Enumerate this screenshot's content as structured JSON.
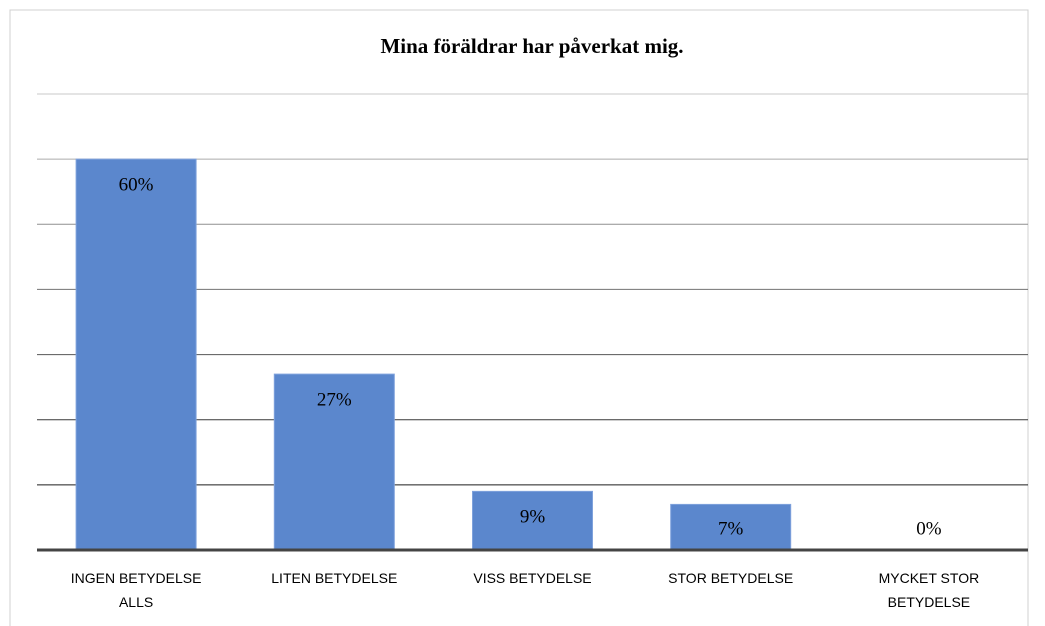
{
  "chart_data": {
    "type": "bar",
    "title": "Mina föräldrar har påverkat mig.",
    "categories": [
      "INGEN BETYDELSE ALLS",
      "LITEN BETYDELSE",
      "VISS BETYDELSE",
      "STOR BETYDELSE",
      "MYCKET STOR BETYDELSE"
    ],
    "values": [
      60,
      27,
      9,
      7,
      0
    ],
    "value_labels": [
      "60%",
      "27%",
      "9%",
      "7%",
      "0%"
    ],
    "color": "#5b87cd",
    "ylim": [
      0,
      70
    ],
    "yticks": [
      0,
      10,
      20,
      30,
      40,
      50,
      60,
      70
    ],
    "grid": true,
    "show_ytick_labels": false
  }
}
